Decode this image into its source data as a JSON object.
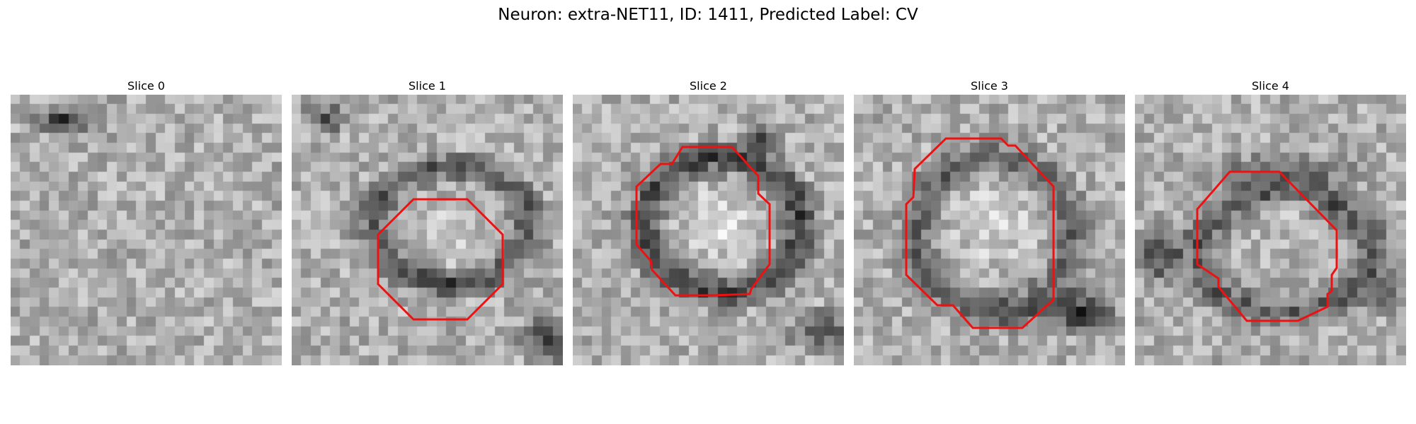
{
  "figure": {
    "title": "Neuron: extra-NET11, ID: 1411, Predicted Label: CV"
  },
  "panels": [
    {
      "title": "Slice 0",
      "has_contour": false
    },
    {
      "title": "Slice 1",
      "has_contour": true
    },
    {
      "title": "Slice 2",
      "has_contour": true
    },
    {
      "title": "Slice 3",
      "has_contour": true
    },
    {
      "title": "Slice 4",
      "has_contour": true
    }
  ],
  "colors": {
    "contour": "#ee1111",
    "background": "#ffffff"
  }
}
